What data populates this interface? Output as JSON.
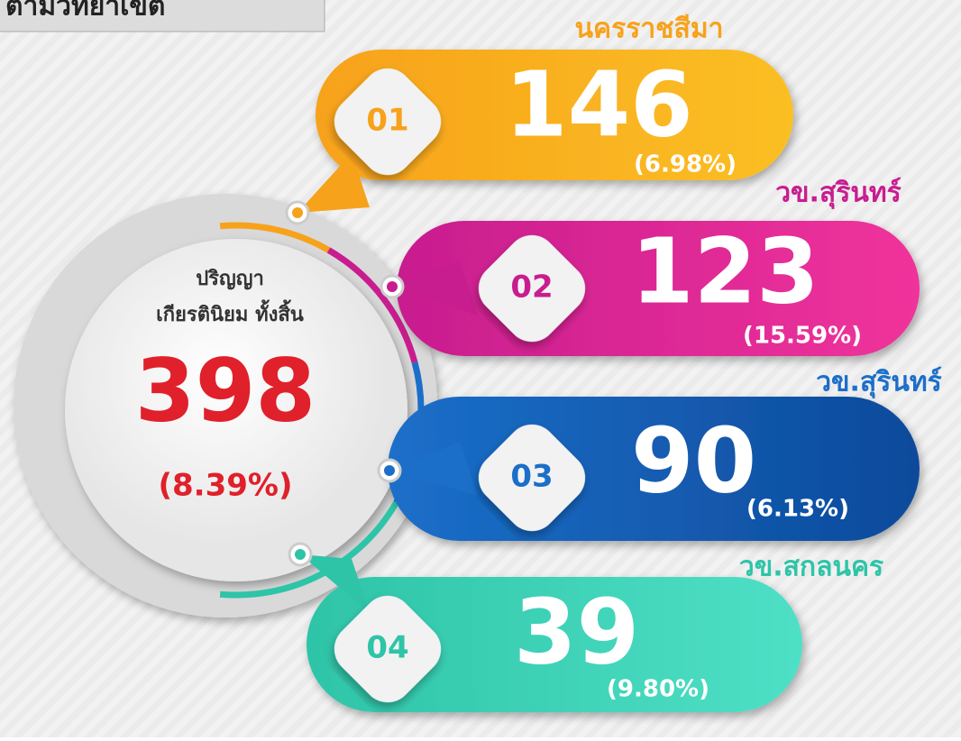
{
  "header": {
    "title": "ตามวิทยาเขต"
  },
  "center": {
    "line1": "ปริญญา",
    "line2": "เกียรตินิยม ทั้งสิ้น",
    "value": 398,
    "percent": "(8.39%)"
  },
  "items": [
    {
      "rank": "01",
      "campus": "นครราชสีมา",
      "value": 146,
      "percent": "(6.98%)",
      "color": "#f7a21b",
      "color2": "#fbbf24"
    },
    {
      "rank": "02",
      "campus": "วข.สุรินทร์",
      "value": 123,
      "percent": "(15.59%)",
      "color": "#c81d8f",
      "color2": "#f0339b"
    },
    {
      "rank": "03",
      "campus": "วข.สุรินทร์",
      "value": 90,
      "percent": "(6.13%)",
      "color": "#1b6fc9",
      "color2": "#0d4a9b"
    },
    {
      "rank": "04",
      "campus": "วข.สกลนคร",
      "value": 39,
      "percent": "(9.80%)",
      "color": "#2ec4a8",
      "color2": "#4fe0c6"
    }
  ]
}
